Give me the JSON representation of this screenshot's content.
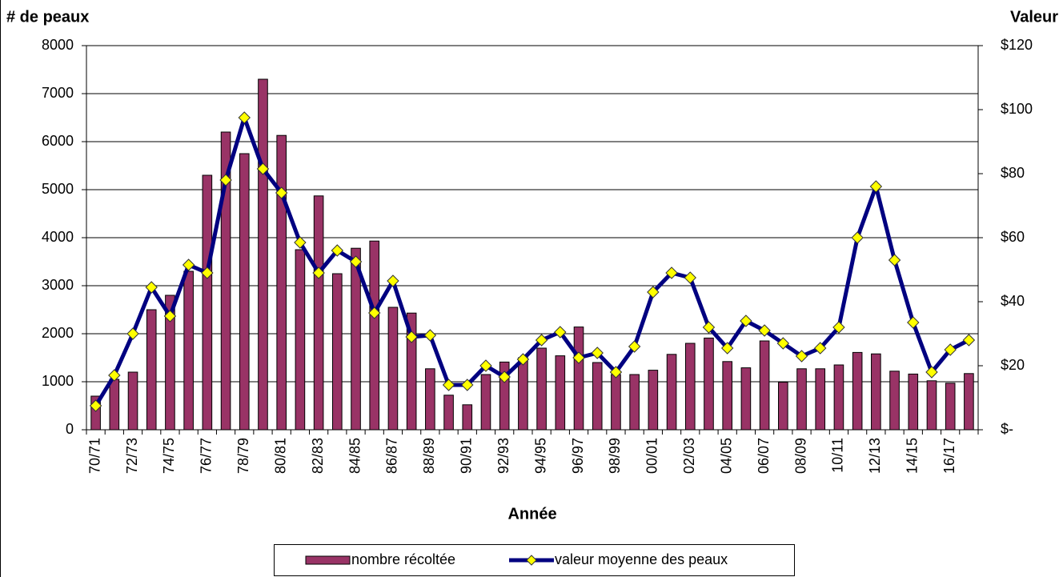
{
  "chart_data": {
    "type": "bar",
    "title_left": "# de peaux",
    "title_right": "Valeur",
    "x_label": "Année",
    "categories": [
      "70/71",
      null,
      "72/73",
      null,
      "74/75",
      null,
      "76/77",
      null,
      "78/79",
      null,
      "80/81",
      null,
      "82/83",
      null,
      "84/85",
      null,
      "86/87",
      null,
      "88/89",
      null,
      "90/91",
      null,
      "92/93",
      null,
      "94/95",
      null,
      "96/97",
      null,
      "98/99",
      null,
      "00/01",
      null,
      "02/03",
      null,
      "04/05",
      null,
      "06/07",
      null,
      "08/09",
      null,
      "10/11",
      null,
      "12/13",
      null,
      "14/15",
      null,
      "16/17",
      null
    ],
    "series": [
      {
        "name": "nombre récoltée",
        "type": "bar",
        "color": "#993366",
        "values": [
          700,
          1050,
          1200,
          2500,
          2800,
          3300,
          5300,
          6200,
          5750,
          7300,
          6130,
          3750,
          4870,
          3250,
          3780,
          3930,
          2550,
          2430,
          1270,
          720,
          520,
          1150,
          1410,
          1500,
          1700,
          1540,
          2140,
          1400,
          1150,
          1150,
          1240,
          1570,
          1800,
          1910,
          1420,
          1290,
          1850,
          990,
          1270,
          1270,
          1350,
          1610,
          1580,
          1220,
          1160,
          1020,
          970,
          1170
        ]
      },
      {
        "name": "valeur moyenne des peaux",
        "type": "line",
        "axis": "y2",
        "color": "#000080",
        "marker_color": "#ffff00",
        "values": [
          7.5,
          17,
          30,
          44.5,
          35.5,
          51.5,
          49,
          78,
          97.5,
          81.5,
          74,
          58.5,
          49,
          56,
          52.5,
          36.5,
          46.5,
          29,
          29.5,
          14,
          14,
          20,
          16.5,
          22,
          28,
          30.5,
          22.5,
          24,
          18,
          26,
          43,
          49,
          47.5,
          32,
          25.5,
          34,
          31,
          27,
          23,
          25.5,
          32,
          60,
          76,
          53,
          33.5,
          18,
          25,
          28
        ]
      }
    ],
    "ylim": [
      0,
      8000
    ],
    "yticks": [
      0,
      1000,
      2000,
      3000,
      4000,
      5000,
      6000,
      7000,
      8000
    ],
    "y2lim": [
      0,
      120
    ],
    "y2ticks": [
      {
        "value": 0,
        "label": "$-"
      },
      {
        "value": 20,
        "label": "$20"
      },
      {
        "value": 40,
        "label": "$40"
      },
      {
        "value": 60,
        "label": "$60"
      },
      {
        "value": 80,
        "label": "$80"
      },
      {
        "value": 100,
        "label": "$100"
      },
      {
        "value": 120,
        "label": "$120"
      }
    ],
    "grid": true
  }
}
